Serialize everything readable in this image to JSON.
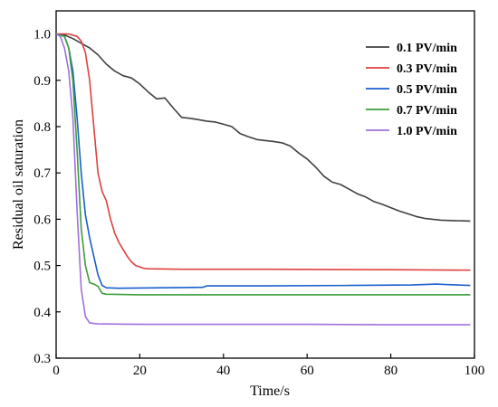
{
  "chart_data": {
    "type": "line",
    "title": "",
    "xlabel": "Time/s",
    "ylabel": "Residual oil saturation",
    "xlim": [
      0,
      100
    ],
    "ylim": [
      0.3,
      1.05
    ],
    "xticks": [
      0,
      20,
      40,
      60,
      80,
      100
    ],
    "yticks": [
      0.3,
      0.4,
      0.5,
      0.6,
      0.7,
      0.8,
      0.9,
      1.0
    ],
    "legend_position": "top-right",
    "grid": false,
    "series": [
      {
        "name": "0.1 PV/min",
        "color": "#404040",
        "points": [
          [
            0,
            1.0
          ],
          [
            2,
            0.998
          ],
          [
            4,
            0.99
          ],
          [
            6,
            0.98
          ],
          [
            8,
            0.97
          ],
          [
            10,
            0.955
          ],
          [
            12,
            0.935
          ],
          [
            14,
            0.92
          ],
          [
            16,
            0.91
          ],
          [
            18,
            0.905
          ],
          [
            20,
            0.892
          ],
          [
            22,
            0.875
          ],
          [
            24,
            0.86
          ],
          [
            26,
            0.862
          ],
          [
            28,
            0.84
          ],
          [
            30,
            0.82
          ],
          [
            32,
            0.818
          ],
          [
            34,
            0.815
          ],
          [
            36,
            0.812
          ],
          [
            38,
            0.81
          ],
          [
            40,
            0.805
          ],
          [
            42,
            0.8
          ],
          [
            44,
            0.785
          ],
          [
            46,
            0.778
          ],
          [
            48,
            0.772
          ],
          [
            50,
            0.77
          ],
          [
            52,
            0.768
          ],
          [
            54,
            0.765
          ],
          [
            56,
            0.758
          ],
          [
            58,
            0.743
          ],
          [
            60,
            0.73
          ],
          [
            62,
            0.713
          ],
          [
            64,
            0.693
          ],
          [
            66,
            0.68
          ],
          [
            68,
            0.675
          ],
          [
            70,
            0.665
          ],
          [
            72,
            0.655
          ],
          [
            74,
            0.648
          ],
          [
            76,
            0.638
          ],
          [
            78,
            0.632
          ],
          [
            80,
            0.625
          ],
          [
            82,
            0.618
          ],
          [
            84,
            0.612
          ],
          [
            86,
            0.606
          ],
          [
            88,
            0.602
          ],
          [
            90,
            0.6
          ],
          [
            92,
            0.598
          ],
          [
            95,
            0.597
          ],
          [
            99,
            0.596
          ]
        ]
      },
      {
        "name": "0.3 PV/min",
        "color": "#e04040",
        "points": [
          [
            0,
            1.0
          ],
          [
            3,
            1.0
          ],
          [
            5,
            0.995
          ],
          [
            6,
            0.985
          ],
          [
            7,
            0.96
          ],
          [
            8,
            0.9
          ],
          [
            9,
            0.8
          ],
          [
            10,
            0.7
          ],
          [
            11,
            0.66
          ],
          [
            12,
            0.64
          ],
          [
            13,
            0.6
          ],
          [
            14,
            0.57
          ],
          [
            15,
            0.55
          ],
          [
            16,
            0.535
          ],
          [
            17,
            0.52
          ],
          [
            18,
            0.508
          ],
          [
            19,
            0.5
          ],
          [
            20,
            0.497
          ],
          [
            21,
            0.494
          ],
          [
            22,
            0.493
          ],
          [
            30,
            0.492
          ],
          [
            50,
            0.492
          ],
          [
            80,
            0.491
          ],
          [
            99,
            0.49
          ]
        ]
      },
      {
        "name": "0.5 PV/min",
        "color": "#1a5fcc",
        "points": [
          [
            0,
            1.0
          ],
          [
            2,
            0.995
          ],
          [
            3,
            0.97
          ],
          [
            4,
            0.92
          ],
          [
            5,
            0.82
          ],
          [
            6,
            0.7
          ],
          [
            7,
            0.61
          ],
          [
            8,
            0.56
          ],
          [
            9,
            0.52
          ],
          [
            10,
            0.48
          ],
          [
            11,
            0.457
          ],
          [
            12,
            0.452
          ],
          [
            15,
            0.451
          ],
          [
            25,
            0.452
          ],
          [
            35,
            0.453
          ],
          [
            36,
            0.456
          ],
          [
            50,
            0.456
          ],
          [
            70,
            0.457
          ],
          [
            85,
            0.458
          ],
          [
            91,
            0.46
          ],
          [
            93,
            0.459
          ],
          [
            99,
            0.457
          ]
        ]
      },
      {
        "name": "0.7 PV/min",
        "color": "#3a9e3a",
        "points": [
          [
            0,
            1.0
          ],
          [
            2,
            0.995
          ],
          [
            3,
            0.97
          ],
          [
            4,
            0.9
          ],
          [
            5,
            0.75
          ],
          [
            6,
            0.58
          ],
          [
            7,
            0.5
          ],
          [
            8,
            0.463
          ],
          [
            9,
            0.46
          ],
          [
            10,
            0.455
          ],
          [
            11,
            0.44
          ],
          [
            12,
            0.438
          ],
          [
            20,
            0.437
          ],
          [
            40,
            0.437
          ],
          [
            60,
            0.437
          ],
          [
            80,
            0.437
          ],
          [
            99,
            0.437
          ]
        ]
      },
      {
        "name": "1.0 PV/min",
        "color": "#a070dd",
        "points": [
          [
            0,
            1.0
          ],
          [
            1,
            0.995
          ],
          [
            2,
            0.97
          ],
          [
            3,
            0.92
          ],
          [
            4,
            0.82
          ],
          [
            5,
            0.62
          ],
          [
            6,
            0.45
          ],
          [
            7,
            0.39
          ],
          [
            8,
            0.376
          ],
          [
            10,
            0.374
          ],
          [
            20,
            0.373
          ],
          [
            40,
            0.373
          ],
          [
            60,
            0.373
          ],
          [
            80,
            0.372
          ],
          [
            99,
            0.372
          ]
        ]
      }
    ]
  }
}
